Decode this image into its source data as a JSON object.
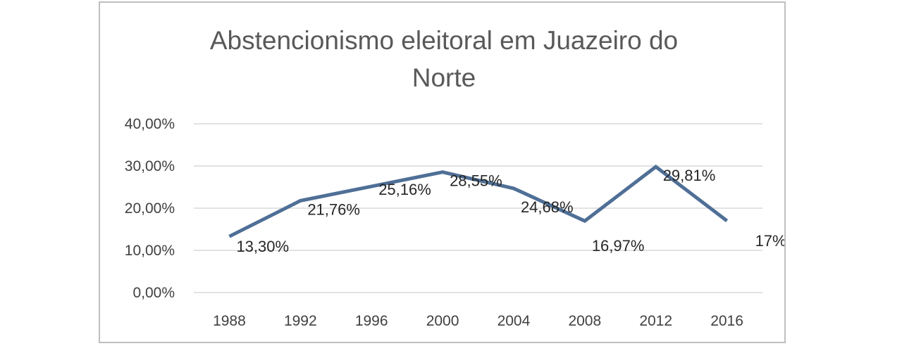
{
  "chart_data": {
    "type": "line",
    "title_lines": [
      "Abstencionismo eleitoral em Juazeiro do",
      "Norte"
    ],
    "categories": [
      "1988",
      "1992",
      "1996",
      "2000",
      "2004",
      "2008",
      "2012",
      "2016"
    ],
    "series": [
      {
        "values": [
          13.3,
          21.76,
          25.16,
          28.55,
          24.68,
          16.97,
          29.81,
          17.0
        ],
        "data_labels": [
          "13,30%",
          "21,76%",
          "25,16%",
          "28,55%",
          "24,68%",
          "16,97%",
          "29,81%",
          "17%"
        ],
        "color": "#4f6f96"
      }
    ],
    "y_ticks": [
      "0,00%",
      "10,00%",
      "20,00%",
      "30,00%",
      "40,00%"
    ],
    "ylim": [
      0,
      40
    ],
    "xlabel": "",
    "ylabel": "",
    "grid": true,
    "legend": "none"
  }
}
